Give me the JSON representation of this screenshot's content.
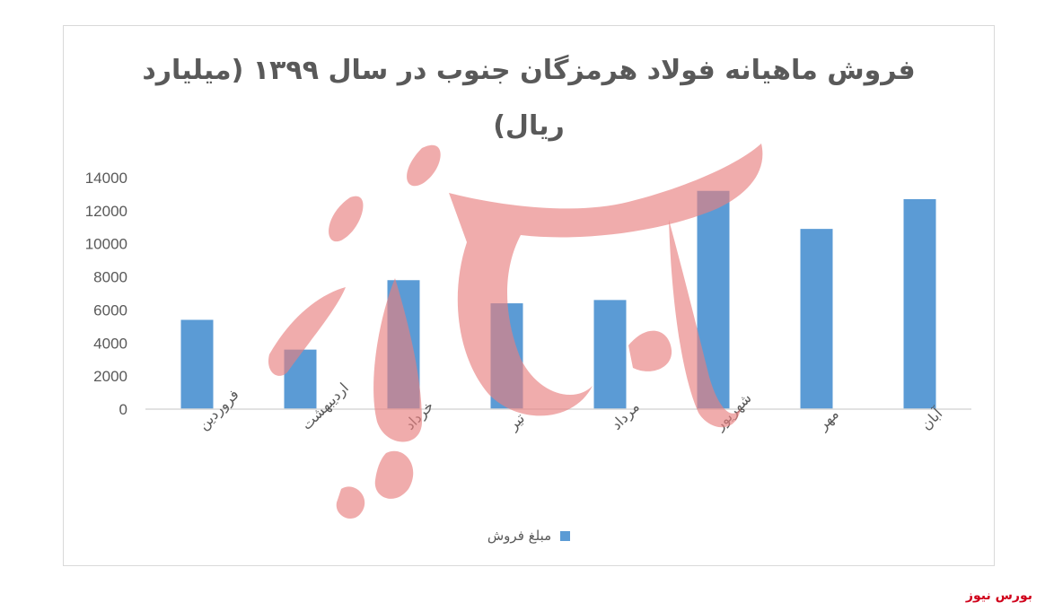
{
  "chart_data": {
    "type": "bar",
    "title_line1": "فروش ماهیانه فولاد هرمزگان جنوب در سال ۱۳۹۹ (میلیارد",
    "title_line2": "ریال)",
    "categories": [
      "فروردین",
      "اردیبهشت",
      "خرداد",
      "تیر",
      "مرداد",
      "شهریور",
      "مهر",
      "آبان"
    ],
    "series": [
      {
        "name": "مبلغ فروش",
        "values": [
          5400,
          3600,
          7800,
          6400,
          6600,
          13200,
          10900,
          12700
        ],
        "color": "#5b9bd5"
      }
    ],
    "ylim": [
      0,
      14000
    ],
    "yticks": [
      0,
      2000,
      4000,
      6000,
      8000,
      10000,
      12000,
      14000
    ],
    "xlabel": "",
    "ylabel": "",
    "grid": false,
    "legend_position": "bottom"
  },
  "watermark": {
    "text": "بورس نیوز",
    "color": "#e8807f"
  },
  "brand": {
    "text": "بورس نیوز",
    "color": "#d0021b"
  }
}
